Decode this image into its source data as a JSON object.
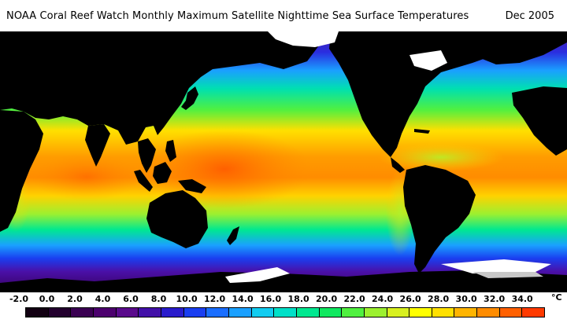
{
  "header": {
    "title": "NOAA Coral Reef Watch Monthly Maximum Satellite Nighttime Sea Surface Temperatures",
    "date": "Dec 2005"
  },
  "legend": {
    "unit": "°C",
    "ticks": [
      "-2.0",
      "0.0",
      "2.0",
      "4.0",
      "6.0",
      "8.0",
      "10.0",
      "12.0",
      "14.0",
      "16.0",
      "18.0",
      "20.0",
      "22.0",
      "24.0",
      "26.0",
      "28.0",
      "30.0",
      "32.0",
      "34.0"
    ],
    "swatches": [
      "#120012",
      "#23002e",
      "#3a0052",
      "#4c006e",
      "#5a0a8c",
      "#4210a8",
      "#2a1ccc",
      "#1a3ef0",
      "#1a6eff",
      "#1aa0ff",
      "#12ccf0",
      "#00e0c8",
      "#00e890",
      "#10e860",
      "#50f040",
      "#9cf030",
      "#d8f020",
      "#ffff00",
      "#ffe000",
      "#ffb400",
      "#ff8c00",
      "#ff6000",
      "#ff3a00"
    ],
    "colors": {
      "land": "#000000",
      "ice": "#ffffff",
      "ice_edge": "#c8c8c8"
    }
  }
}
